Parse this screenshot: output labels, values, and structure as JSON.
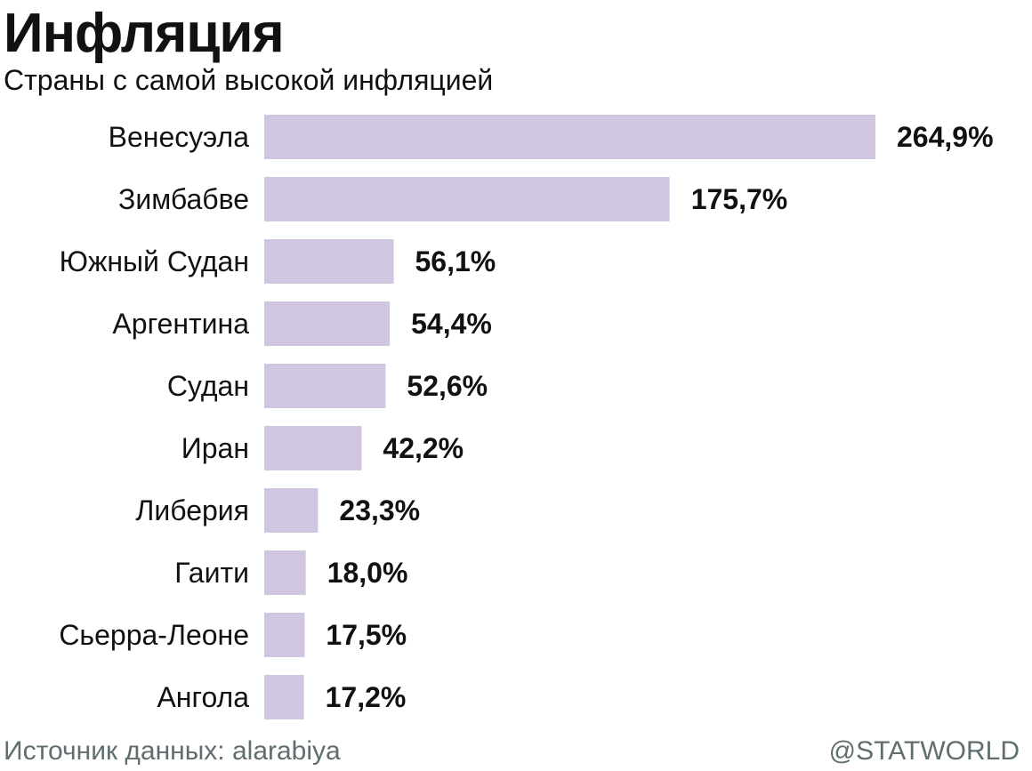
{
  "chart_data": {
    "type": "bar",
    "orientation": "horizontal",
    "title": "Инфляция",
    "subtitle": "Страны с самой высокой инфляцией",
    "categories": [
      "Венесуэла",
      "Зимбабве",
      "Южный Судан",
      "Аргентина",
      "Судан",
      "Иран",
      "Либерия",
      "Гаити",
      "Сьерра-Леоне",
      "Ангола"
    ],
    "values": [
      264.9,
      175.7,
      56.1,
      54.4,
      52.6,
      42.2,
      23.3,
      18.0,
      17.5,
      17.2
    ],
    "value_labels": [
      "264,9%",
      "175,7%",
      "56,1%",
      "54,4%",
      "52,6%",
      "42,2%",
      "23,3%",
      "18,0%",
      "17,5%",
      "17,2%"
    ],
    "xlim": [
      0,
      264.9
    ],
    "grid": false,
    "bar_color": "#d0c6e0"
  },
  "footer": {
    "source": "Источник данных: alarabiya",
    "brand": "@STATWORLD"
  },
  "colors": {
    "text": "#111111",
    "footer_text": "#5f6e6e",
    "background": "#ffffff"
  }
}
